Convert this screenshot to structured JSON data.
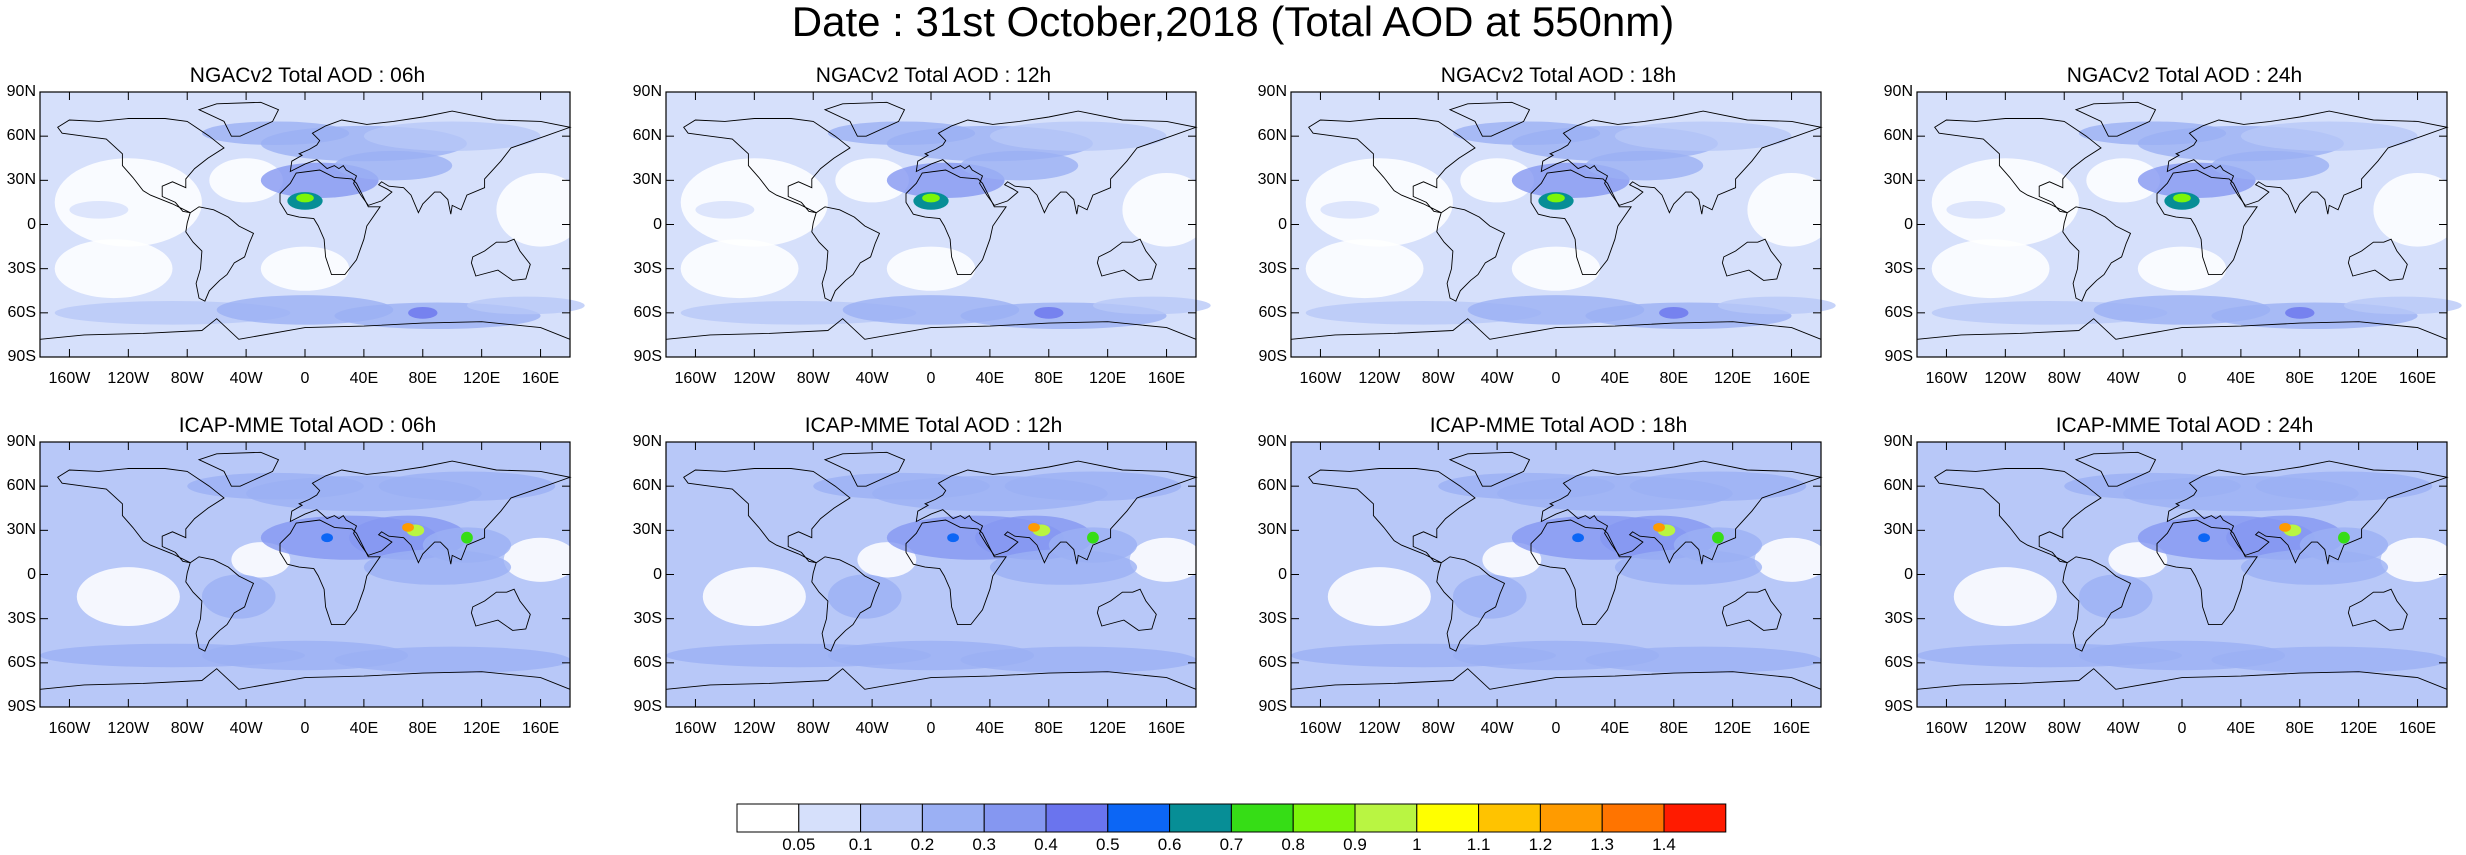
{
  "title": "Date : 31st October,2018 (Total AOD at 550nm)",
  "panels": [
    {
      "title": "NGACv2 Total AOD : 06h",
      "model": "NGACv2",
      "hour": "06h"
    },
    {
      "title": "NGACv2 Total AOD : 12h",
      "model": "NGACv2",
      "hour": "12h"
    },
    {
      "title": "NGACv2 Total AOD : 18h",
      "model": "NGACv2",
      "hour": "18h"
    },
    {
      "title": "NGACv2 Total AOD : 24h",
      "model": "NGACv2",
      "hour": "24h"
    },
    {
      "title": "ICAP-MME Total AOD : 06h",
      "model": "ICAP-MME",
      "hour": "06h"
    },
    {
      "title": "ICAP-MME Total AOD : 12h",
      "model": "ICAP-MME",
      "hour": "12h"
    },
    {
      "title": "ICAP-MME Total AOD : 18h",
      "model": "ICAP-MME",
      "hour": "18h"
    },
    {
      "title": "ICAP-MME Total AOD : 24h",
      "model": "ICAP-MME",
      "hour": "24h"
    }
  ],
  "lat_ticks": [
    "90N",
    "60N",
    "30N",
    "0",
    "30S",
    "60S",
    "90S"
  ],
  "lon_ticks": [
    "160W",
    "120W",
    "80W",
    "40W",
    "0",
    "40E",
    "80E",
    "120E",
    "160E"
  ],
  "lat_values": [
    90,
    60,
    30,
    0,
    -30,
    -60,
    -90
  ],
  "lon_values": [
    -160,
    -120,
    -80,
    -40,
    0,
    40,
    80,
    120,
    160
  ],
  "colorbar": {
    "labels": [
      "0.05",
      "0.1",
      "0.2",
      "0.3",
      "0.4",
      "0.5",
      "0.6",
      "0.7",
      "0.8",
      "0.9",
      "1",
      "1.1",
      "1.2",
      "1.3",
      "1.4"
    ],
    "colors": [
      "#ffffff",
      "#d6e0fb",
      "#b8c8f8",
      "#9bb0f4",
      "#8597f1",
      "#6a74ee",
      "#0c66f5",
      "#078e96",
      "#36dd16",
      "#7cf50a",
      "#b9f542",
      "#ffff00",
      "#ffc300",
      "#ff9b00",
      "#ff7400",
      "#ff1b00"
    ]
  },
  "styles": {
    "coastline": "#000000",
    "low_aod": "#d6e0fb",
    "mid_aod": "#9bb0f4",
    "high_aod": "#6a74ee"
  }
}
